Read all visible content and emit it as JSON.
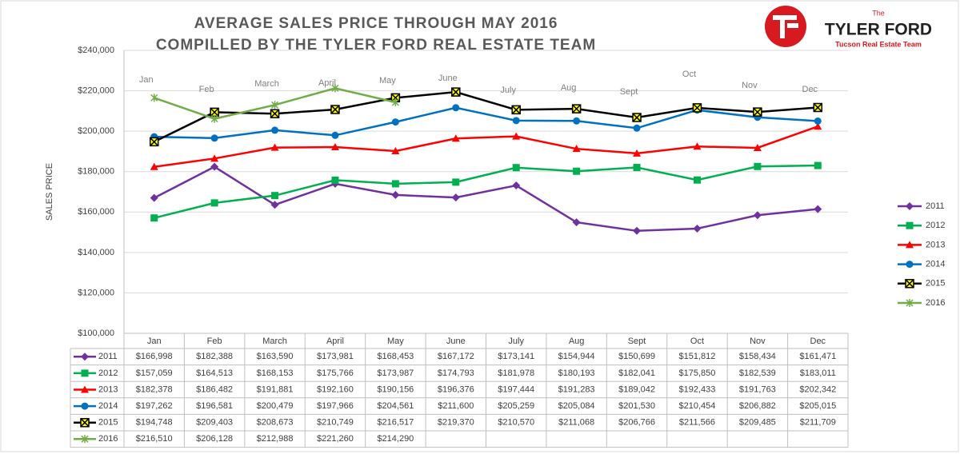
{
  "logo": {
    "small": "The",
    "name": "TYLER FORD",
    "tagline": "Tucson Real Estate Team"
  },
  "chart_data": {
    "type": "line",
    "title": [
      "AVERAGE SALES PRICE THROUGH MAY 2016",
      "COMPILLED BY THE TYLER FORD REAL ESTATE TEAM"
    ],
    "y_label": "SALES PRICE",
    "categories": [
      "Jan",
      "Feb",
      "March",
      "April",
      "May",
      "June",
      "July",
      "Aug",
      "Sept",
      "Oct",
      "Nov",
      "Dec"
    ],
    "ylim": [
      100000,
      240000
    ],
    "yticks": [
      {
        "value": 100000,
        "label": "$100,000"
      },
      {
        "value": 120000,
        "label": "$120,000"
      },
      {
        "value": 140000,
        "label": "$140,000"
      },
      {
        "value": 160000,
        "label": "$160,000"
      },
      {
        "value": 180000,
        "label": "$180,000"
      },
      {
        "value": 200000,
        "label": "$200,000"
      },
      {
        "value": 220000,
        "label": "$220,000"
      },
      {
        "value": 240000,
        "label": "$240,000"
      }
    ],
    "grid": true,
    "legend": "right",
    "series": [
      {
        "name": "2011",
        "color": "#7030a0",
        "marker": "diamond",
        "values": [
          166998,
          182388,
          163590,
          173981,
          168453,
          167172,
          173141,
          154944,
          150699,
          151812,
          158434,
          161471
        ],
        "value_labels": [
          "$166,998",
          "$182,388",
          "$163,590",
          "$173,981",
          "$168,453",
          "$167,172",
          "$173,141",
          "$154,944",
          "$150,699",
          "$151,812",
          "$158,434",
          "$161,471"
        ]
      },
      {
        "name": "2012",
        "color": "#00b050",
        "marker": "square",
        "values": [
          157059,
          164513,
          168153,
          175766,
          173987,
          174793,
          181978,
          180193,
          182041,
          175850,
          182539,
          183011
        ],
        "value_labels": [
          "$157,059",
          "$164,513",
          "$168,153",
          "$175,766",
          "$173,987",
          "$174,793",
          "$181,978",
          "$180,193",
          "$182,041",
          "$175,850",
          "$182,539",
          "$183,011"
        ]
      },
      {
        "name": "2013",
        "color": "#ff0000",
        "marker": "triangle",
        "values": [
          182378,
          186482,
          191881,
          192160,
          190156,
          196376,
          197444,
          191283,
          189042,
          192433,
          191763,
          202342
        ],
        "value_labels": [
          "$182,378",
          "$186,482",
          "$191,881",
          "$192,160",
          "$190,156",
          "$196,376",
          "$197,444",
          "$191,283",
          "$189,042",
          "$192,433",
          "$191,763",
          "$202,342"
        ]
      },
      {
        "name": "2014",
        "color": "#0070c0",
        "marker": "circle",
        "values": [
          197262,
          196581,
          200479,
          197966,
          204561,
          211600,
          205259,
          205084,
          201530,
          210454,
          206882,
          205015
        ],
        "value_labels": [
          "$197,262",
          "$196,581",
          "$200,479",
          "$197,966",
          "$204,561",
          "$211,600",
          "$205,259",
          "$205,084",
          "$201,530",
          "$210,454",
          "$206,882",
          "$205,015"
        ]
      },
      {
        "name": "2015",
        "color": "#000000",
        "marker": "xbox",
        "values": [
          194748,
          209403,
          208673,
          210749,
          216517,
          219370,
          210570,
          211068,
          206766,
          211566,
          209485,
          211709
        ],
        "value_labels": [
          "$194,748",
          "$209,403",
          "$208,673",
          "$210,749",
          "$216,517",
          "$219,370",
          "$210,570",
          "$211,068",
          "$206,766",
          "$211,566",
          "$209,485",
          "$211,709"
        ]
      },
      {
        "name": "2016",
        "color": "#70ad47",
        "marker": "star",
        "values": [
          216510,
          206128,
          212988,
          221260,
          214290,
          null,
          null,
          null,
          null,
          null,
          null,
          null
        ],
        "value_labels": [
          "$216,510",
          "$206,128",
          "$212,988",
          "$221,260",
          "$214,290",
          null,
          null,
          null,
          null,
          null,
          null,
          null
        ]
      }
    ]
  }
}
